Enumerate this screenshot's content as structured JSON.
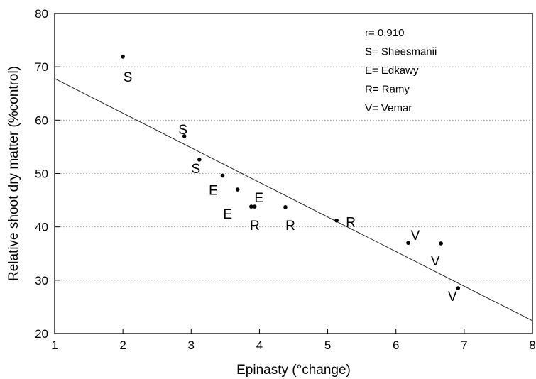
{
  "chart_data": {
    "type": "scatter",
    "title": "",
    "xlabel": "Epinasty (°change)",
    "ylabel": "Relative shoot dry matter (%control)",
    "xlim": [
      1,
      8
    ],
    "ylim": [
      20,
      80
    ],
    "xticks": [
      1,
      2,
      3,
      4,
      5,
      6,
      7,
      8
    ],
    "yticks": [
      20,
      30,
      40,
      50,
      60,
      70,
      80
    ],
    "grid": "horizontal dotted",
    "points": [
      {
        "x": 2.0,
        "y": 71.9,
        "label": "S"
      },
      {
        "x": 2.9,
        "y": 57.0,
        "label": "S"
      },
      {
        "x": 3.12,
        "y": 52.6,
        "label": "S"
      },
      {
        "x": 3.46,
        "y": 49.6,
        "label": "E"
      },
      {
        "x": 3.68,
        "y": 47.0,
        "label": "E"
      },
      {
        "x": 3.93,
        "y": 43.8,
        "label": "E"
      },
      {
        "x": 3.88,
        "y": 43.8,
        "label": "R"
      },
      {
        "x": 4.38,
        "y": 43.7,
        "label": "R"
      },
      {
        "x": 5.13,
        "y": 41.2,
        "label": "R"
      },
      {
        "x": 6.18,
        "y": 37.0,
        "label": "V"
      },
      {
        "x": 6.66,
        "y": 36.9,
        "label": "V"
      },
      {
        "x": 6.91,
        "y": 28.5,
        "label": "V"
      }
    ],
    "regression_line": {
      "x": [
        1,
        8
      ],
      "y": [
        67.8,
        22.4
      ]
    },
    "legend": {
      "position": "top-right",
      "lines": [
        "r= 0.910",
        "S= Sheesmanii",
        "E= Edkawy",
        "R= Ramy",
        "V= Vemar"
      ]
    }
  }
}
